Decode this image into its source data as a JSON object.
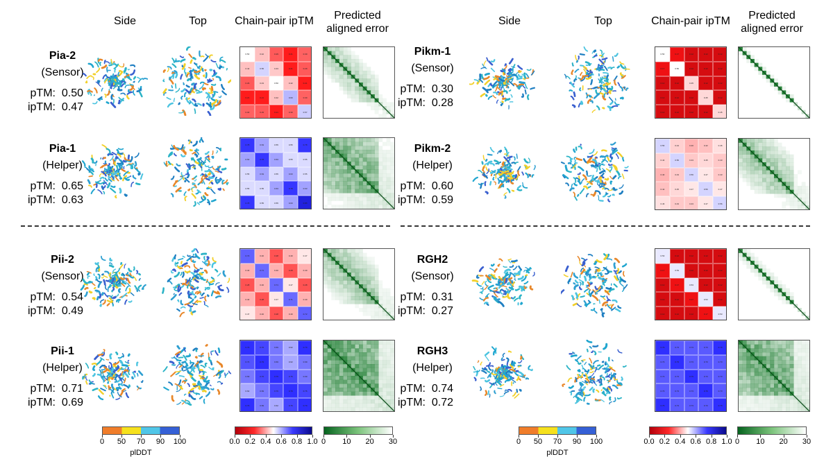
{
  "column_headers": {
    "side": "Side",
    "top": "Top",
    "ipTM": "Chain-pair ipTM",
    "pae_line1": "Predicted",
    "pae_line2": "aligned error"
  },
  "models": [
    {
      "name": "Pia-2",
      "role": "(Sensor)",
      "pTM_label": "pTM:",
      "pTM": "0.50",
      "ipTM_label": "ipTM:",
      "ipTM": "0.47",
      "matrix_values": [
        0.5,
        0.42,
        0.29,
        0.21,
        0.3,
        0.42,
        0.56,
        0.43,
        0.21,
        0.29,
        0.29,
        0.43,
        0.5,
        0.42,
        0.21,
        0.21,
        0.21,
        0.42,
        0.6,
        0.3,
        0.3,
        0.29,
        0.21,
        0.3,
        0.57
      ],
      "pae_density": 0.45
    },
    {
      "name": "Pia-1",
      "role": "(Helper)",
      "pTM_label": "pTM:",
      "pTM": "0.65",
      "ipTM_label": "ipTM:",
      "ipTM": "0.63",
      "matrix_values": [
        0.78,
        0.63,
        0.55,
        0.55,
        0.78,
        0.63,
        0.78,
        0.63,
        0.55,
        0.55,
        0.55,
        0.63,
        0.55,
        0.63,
        0.55,
        0.55,
        0.55,
        0.63,
        0.78,
        0.63,
        0.78,
        0.55,
        0.55,
        0.63,
        0.85
      ],
      "pae_density": 0.75
    },
    {
      "name": "Pii-2",
      "role": "(Sensor)",
      "pTM_label": "pTM:",
      "pTM": "0.54",
      "ipTM_label": "ipTM:",
      "ipTM": "0.49",
      "matrix_values": [
        0.72,
        0.4,
        0.28,
        0.4,
        0.47,
        0.4,
        0.71,
        0.4,
        0.28,
        0.4,
        0.28,
        0.4,
        0.71,
        0.47,
        0.28,
        0.4,
        0.28,
        0.47,
        0.71,
        0.4,
        0.47,
        0.4,
        0.28,
        0.4,
        0.72
      ],
      "pae_density": 0.55
    },
    {
      "name": "Pii-1",
      "role": "(Helper)",
      "pTM_label": "pTM:",
      "pTM": "0.71",
      "ipTM_label": "ipTM:",
      "ipTM": "0.69",
      "matrix_values": [
        0.79,
        0.76,
        0.69,
        0.62,
        0.79,
        0.74,
        0.79,
        0.69,
        0.62,
        0.69,
        0.69,
        0.76,
        0.79,
        0.76,
        0.69,
        0.62,
        0.69,
        0.76,
        0.79,
        0.76,
        0.79,
        0.69,
        0.62,
        0.76,
        0.79
      ],
      "pae_density": 0.85
    },
    {
      "name": "Pikm-1",
      "role": "(Sensor)",
      "pTM_label": "pTM:",
      "pTM": "0.30",
      "ipTM_label": "ipTM:",
      "ipTM": "0.28",
      "matrix_values": [
        0.5,
        0.17,
        0.12,
        0.12,
        0.12,
        0.17,
        0.5,
        0.12,
        0.12,
        0.12,
        0.12,
        0.12,
        0.45,
        0.12,
        0.12,
        0.12,
        0.12,
        0.12,
        0.45,
        0.12,
        0.12,
        0.12,
        0.12,
        0.12,
        0.45
      ],
      "pae_density": 0.2
    },
    {
      "name": "Pikm-2",
      "role": "(Helper)",
      "pTM_label": "pTM:",
      "pTM": "0.60",
      "ipTM_label": "ipTM:",
      "ipTM": "0.59",
      "matrix_values": [
        0.56,
        0.44,
        0.4,
        0.42,
        0.46,
        0.44,
        0.56,
        0.43,
        0.45,
        0.43,
        0.4,
        0.43,
        0.56,
        0.47,
        0.43,
        0.42,
        0.45,
        0.47,
        0.56,
        0.47,
        0.46,
        0.43,
        0.43,
        0.47,
        0.56
      ],
      "pae_density": 0.55
    },
    {
      "name": "RGH2",
      "role": "(Sensor)",
      "pTM_label": "pTM:",
      "pTM": "0.31",
      "ipTM_label": "ipTM:",
      "ipTM": "0.27",
      "matrix_values": [
        0.53,
        0.12,
        0.12,
        0.12,
        0.12,
        0.17,
        0.53,
        0.12,
        0.12,
        0.12,
        0.12,
        0.17,
        0.53,
        0.12,
        0.12,
        0.12,
        0.12,
        0.17,
        0.53,
        0.12,
        0.12,
        0.12,
        0.12,
        0.17,
        0.53
      ],
      "pae_density": 0.25
    },
    {
      "name": "RGH3",
      "role": "(Helper)",
      "pTM_label": "pTM:",
      "pTM": "0.74",
      "ipTM_label": "ipTM:",
      "ipTM": "0.72",
      "matrix_values": [
        0.79,
        0.73,
        0.73,
        0.73,
        0.79,
        0.73,
        0.79,
        0.73,
        0.73,
        0.73,
        0.73,
        0.73,
        0.79,
        0.73,
        0.73,
        0.73,
        0.73,
        0.73,
        0.79,
        0.73,
        0.79,
        0.73,
        0.73,
        0.73,
        0.79
      ],
      "pae_density": 0.8
    }
  ],
  "colorbars": {
    "plddt": {
      "ticks": [
        "0",
        "50",
        "70",
        "90",
        "100"
      ],
      "label": "plDDT",
      "colors": [
        "#f07d2a",
        "#f6e11d",
        "#50c6e8",
        "#3560d6"
      ]
    },
    "iptm": {
      "ticks": [
        "0.0",
        "0.2",
        "0.4",
        "0.6",
        "0.8",
        "1.0"
      ],
      "colors": [
        "#b4000b",
        "#ff2a2a",
        "#ffffff",
        "#3a3aff",
        "#0a0a8c"
      ]
    },
    "pae": {
      "ticks": [
        "0",
        "10",
        "20",
        "30"
      ],
      "colors": [
        "#05631e",
        "#7cc47c",
        "#ffffff"
      ]
    }
  }
}
